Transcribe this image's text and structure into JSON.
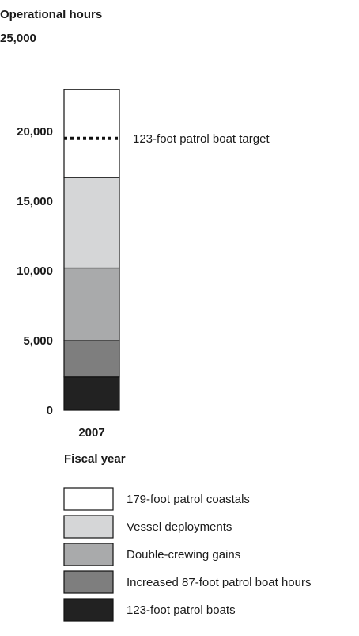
{
  "chart_data": {
    "type": "bar",
    "stacked": true,
    "ylabel": "Operational hours",
    "xlabel": "Fiscal year",
    "ylim": [
      0,
      25000
    ],
    "yticks": [
      0,
      5000,
      10000,
      15000,
      20000,
      25000
    ],
    "ytick_labels": [
      "0",
      "5,000",
      "10,000",
      "15,000",
      "20,000",
      "25,000"
    ],
    "categories": [
      "2007"
    ],
    "series": [
      {
        "name": "123-foot patrol boats",
        "color": "#222222",
        "values": [
          2400
        ]
      },
      {
        "name": "Increased 87-foot patrol boat hours",
        "color": "#7e7e7e",
        "values": [
          2600
        ]
      },
      {
        "name": "Double-crewing gains",
        "color": "#a9aaab",
        "values": [
          5200
        ]
      },
      {
        "name": "Vessel deployments",
        "color": "#d5d6d7",
        "values": [
          6500
        ]
      },
      {
        "name": "179-foot patrol coastals",
        "color": "#ffffff",
        "values": [
          6300
        ]
      }
    ],
    "legend_order": [
      "179-foot patrol coastals",
      "Vessel deployments",
      "Double-crewing gains",
      "Increased 87-foot patrol boat hours",
      "123-foot patrol boats"
    ],
    "annotations": [
      {
        "label": "123-foot patrol boat target",
        "value": 19500,
        "style": "dotted"
      }
    ],
    "grid": false,
    "legend_position": "bottom"
  }
}
